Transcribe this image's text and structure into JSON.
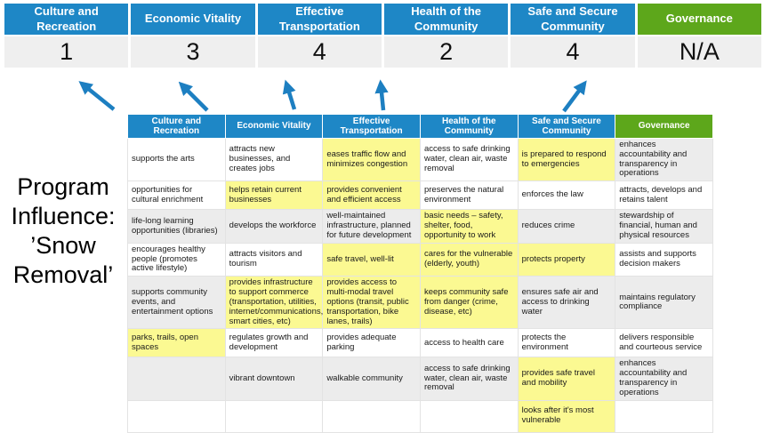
{
  "colors": {
    "blue": "#1E87C6",
    "green": "#5DA71B",
    "yellow": "#FBF992",
    "gray_band": "#ECECEC",
    "score_bg": "#EFEFEF",
    "arrow": "#1D7FC1"
  },
  "title": {
    "lines": [
      "Program",
      "Influence:",
      "’Snow",
      "Removal’"
    ]
  },
  "scoreboard": {
    "columns": [
      {
        "label": "Culture and Recreation",
        "score": "1",
        "color": "blue"
      },
      {
        "label": "Economic Vitality",
        "score": "3",
        "color": "blue"
      },
      {
        "label": "Effective Transportation",
        "score": "4",
        "color": "blue"
      },
      {
        "label": "Health of the Community",
        "score": "2",
        "color": "blue"
      },
      {
        "label": "Safe and Secure Community",
        "score": "4",
        "color": "blue"
      },
      {
        "label": "Governance",
        "score": "N/A",
        "color": "green"
      }
    ]
  },
  "table": {
    "headers": [
      {
        "label": "Culture and Recreation",
        "color": "blue"
      },
      {
        "label": "Economic Vitality",
        "color": "blue"
      },
      {
        "label": "Effective Transportation",
        "color": "blue"
      },
      {
        "label": "Health of the Community",
        "color": "blue"
      },
      {
        "label": "Safe and Secure Community",
        "color": "blue"
      },
      {
        "label": "Governance",
        "color": "green"
      }
    ],
    "rows": [
      [
        {
          "text": "supports the arts",
          "bg": "white"
        },
        {
          "text": "attracts new businesses, and creates jobs",
          "bg": "white"
        },
        {
          "text": "eases traffic flow and minimizes congestion",
          "bg": "yellow"
        },
        {
          "text": "access to safe drinking water, clean air, waste removal",
          "bg": "white"
        },
        {
          "text": "is prepared to respond to emergencies",
          "bg": "yellow"
        },
        {
          "text": "enhances accountability and transparency in operations",
          "bg": "gray"
        }
      ],
      [
        {
          "text": "opportunities for cultural enrichment",
          "bg": "white"
        },
        {
          "text": "helps retain current businesses",
          "bg": "yellow"
        },
        {
          "text": "provides convenient and efficient access",
          "bg": "yellow"
        },
        {
          "text": "preserves the natural environment",
          "bg": "white"
        },
        {
          "text": "enforces the law",
          "bg": "white"
        },
        {
          "text": "attracts, develops and retains talent",
          "bg": "white"
        }
      ],
      [
        {
          "text": "life-long learning opportunities (libraries)",
          "bg": "gray"
        },
        {
          "text": "develops the workforce",
          "bg": "gray"
        },
        {
          "text": "well-maintained infrastructure, planned for future development",
          "bg": "gray"
        },
        {
          "text": "basic needs – safety, shelter, food, opportunity to work",
          "bg": "yellow"
        },
        {
          "text": "reduces crime",
          "bg": "gray"
        },
        {
          "text": "stewardship of financial, human and physical resources",
          "bg": "gray"
        }
      ],
      [
        {
          "text": "encourages healthy people (promotes active lifestyle)",
          "bg": "white"
        },
        {
          "text": "attracts visitors and tourism",
          "bg": "white"
        },
        {
          "text": "safe travel, well-lit",
          "bg": "yellow"
        },
        {
          "text": "cares for the vulnerable (elderly, youth)",
          "bg": "yellow"
        },
        {
          "text": "protects property",
          "bg": "yellow"
        },
        {
          "text": "assists and supports decision makers",
          "bg": "white"
        }
      ],
      [
        {
          "text": "supports community events, and entertainment options",
          "bg": "gray"
        },
        {
          "text": "provides infrastructure to support commerce (transportation, utilities, internet/communications, smart cities, etc)",
          "bg": "yellow"
        },
        {
          "text": "provides access to multi-modal travel options (transit, public transportation, bike lanes, trails)",
          "bg": "yellow"
        },
        {
          "text": "keeps community safe from danger (crime, disease, etc)",
          "bg": "yellow"
        },
        {
          "text": "ensures safe air and access to drinking water",
          "bg": "gray"
        },
        {
          "text": "maintains regulatory compliance",
          "bg": "gray"
        }
      ],
      [
        {
          "text": "parks, trails, open spaces",
          "bg": "yellow"
        },
        {
          "text": "regulates growth and development",
          "bg": "white"
        },
        {
          "text": "provides adequate parking",
          "bg": "white"
        },
        {
          "text": "access to health care",
          "bg": "white"
        },
        {
          "text": "protects the environment",
          "bg": "white"
        },
        {
          "text": "delivers responsible and courteous service",
          "bg": "white"
        }
      ],
      [
        {
          "text": "",
          "bg": "gray"
        },
        {
          "text": "vibrant downtown",
          "bg": "gray"
        },
        {
          "text": "walkable community",
          "bg": "gray"
        },
        {
          "text": "access to safe drinking water, clean air, waste removal",
          "bg": "gray"
        },
        {
          "text": "provides safe travel and mobility",
          "bg": "yellow"
        },
        {
          "text": "enhances accountability and transparency in operations",
          "bg": "gray"
        }
      ],
      [
        {
          "text": "",
          "bg": "white"
        },
        {
          "text": "",
          "bg": "white"
        },
        {
          "text": "",
          "bg": "white"
        },
        {
          "text": "",
          "bg": "white"
        },
        {
          "text": "looks after it's most vulnerable",
          "bg": "yellow"
        },
        {
          "text": "",
          "bg": "white"
        }
      ]
    ]
  }
}
